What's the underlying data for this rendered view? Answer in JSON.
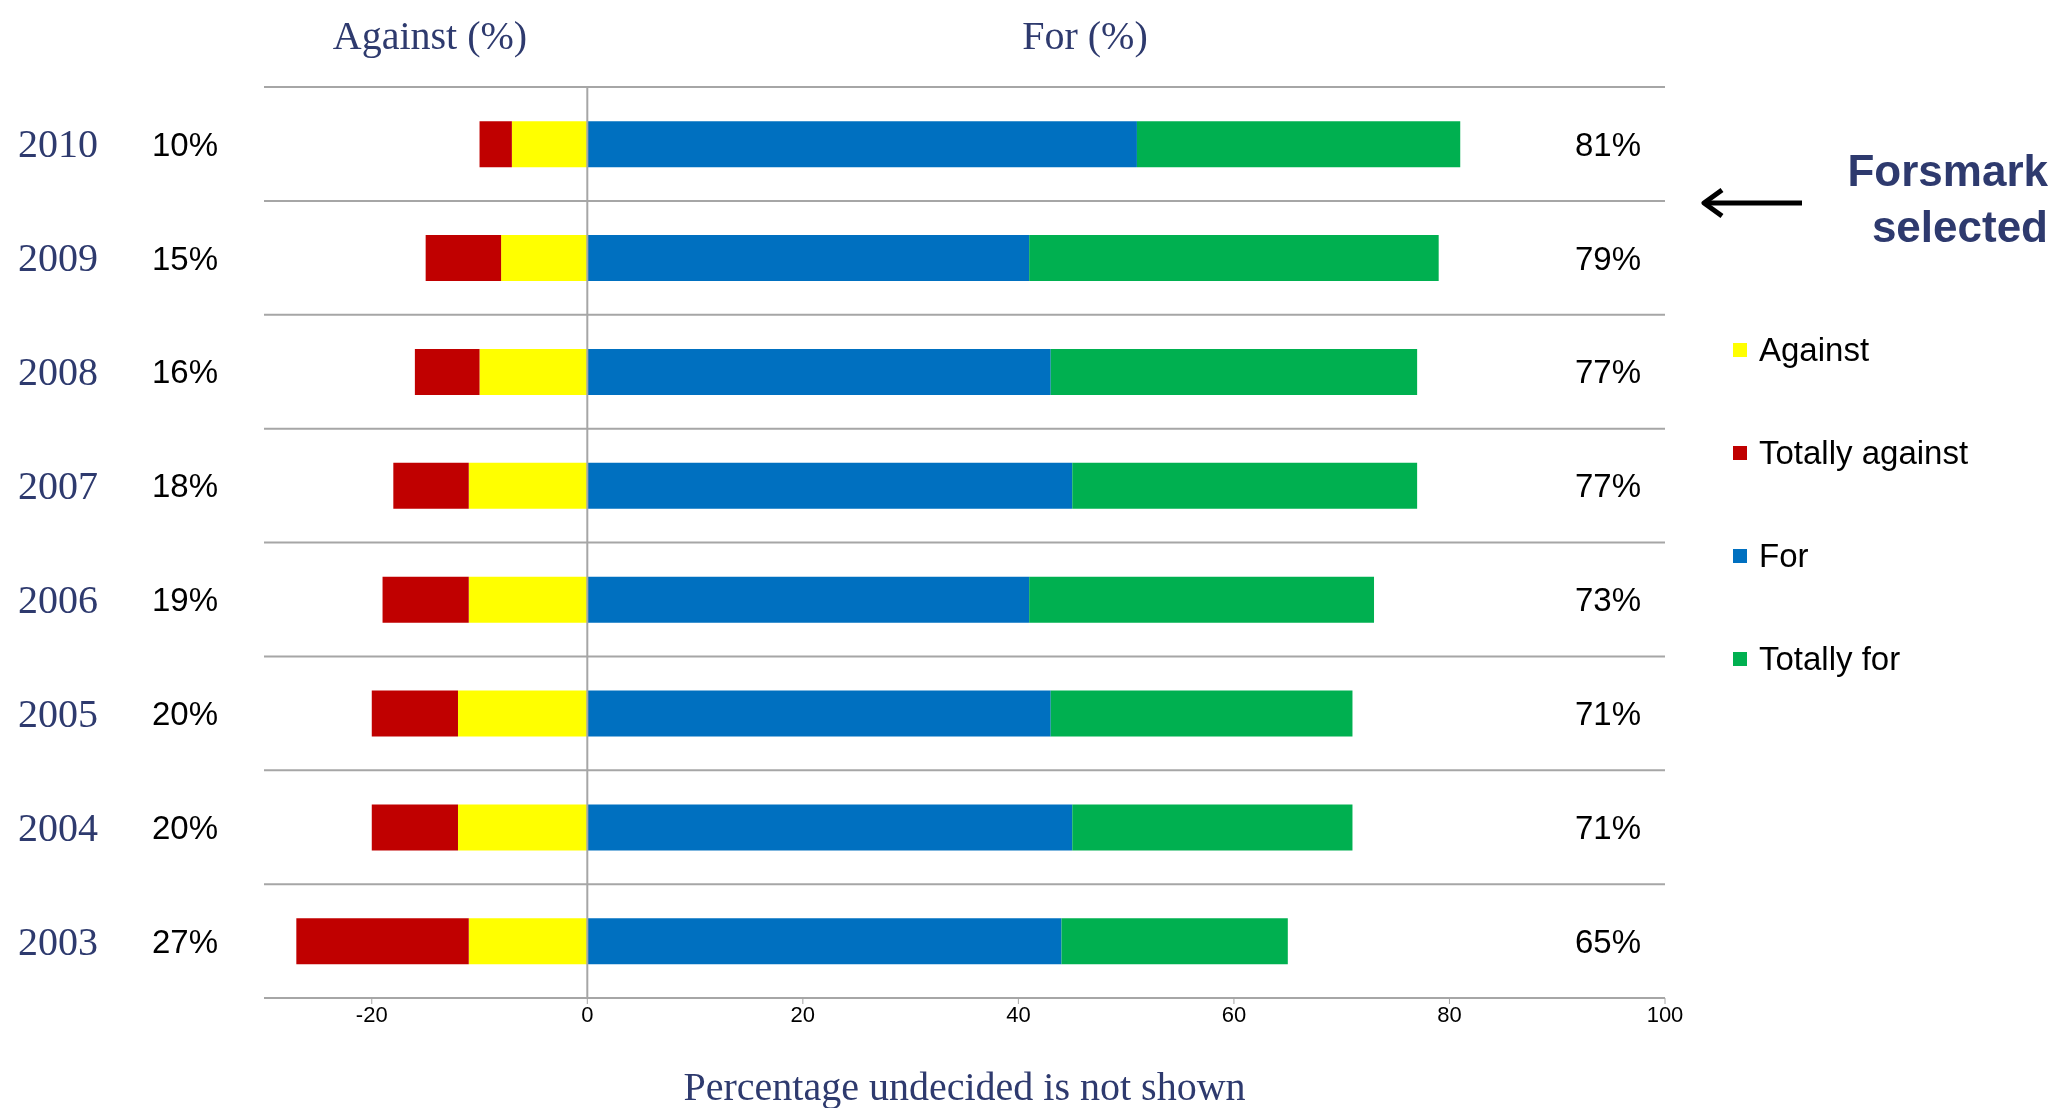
{
  "chart_data": {
    "type": "bar",
    "orientation": "horizontal",
    "stacked": true,
    "categories": [
      "2010",
      "2009",
      "2008",
      "2007",
      "2006",
      "2005",
      "2004",
      "2003"
    ],
    "series": [
      {
        "name": "Against",
        "color": "#ffff00",
        "values": [
          -7,
          -8,
          -10,
          -11,
          -11,
          -12,
          -12,
          -11
        ]
      },
      {
        "name": "Totally against",
        "color": "#c00000",
        "values": [
          -3,
          -7,
          -6,
          -7,
          -8,
          -8,
          -8,
          -16
        ]
      },
      {
        "name": "For",
        "color": "#0070c0",
        "values": [
          51,
          41,
          43,
          45,
          41,
          43,
          45,
          44
        ]
      },
      {
        "name": "Totally for",
        "color": "#00b050",
        "values": [
          30,
          38,
          34,
          32,
          32,
          28,
          26,
          21
        ]
      }
    ],
    "totals": [
      [
        "10%",
        "81%"
      ],
      [
        "15%",
        "79%"
      ],
      [
        "16%",
        "77%"
      ],
      [
        "18%",
        "77%"
      ],
      [
        "19%",
        "73%"
      ],
      [
        "20%",
        "71%"
      ],
      [
        "20%",
        "71%"
      ],
      [
        "27%",
        "65%"
      ]
    ],
    "xlim": [
      -30,
      100
    ],
    "xticks": [
      -20,
      0,
      20,
      40,
      60,
      80,
      100
    ],
    "xlabel": "Percentage undecided is not shown",
    "annotations": [
      "Against (%)",
      "For (%)",
      "Forsmark selected"
    ],
    "ref_lines": [
      {
        "axis": "x",
        "value": 0,
        "color": "#a6a6a6"
      }
    ],
    "grid": "y",
    "legend": "right"
  }
}
